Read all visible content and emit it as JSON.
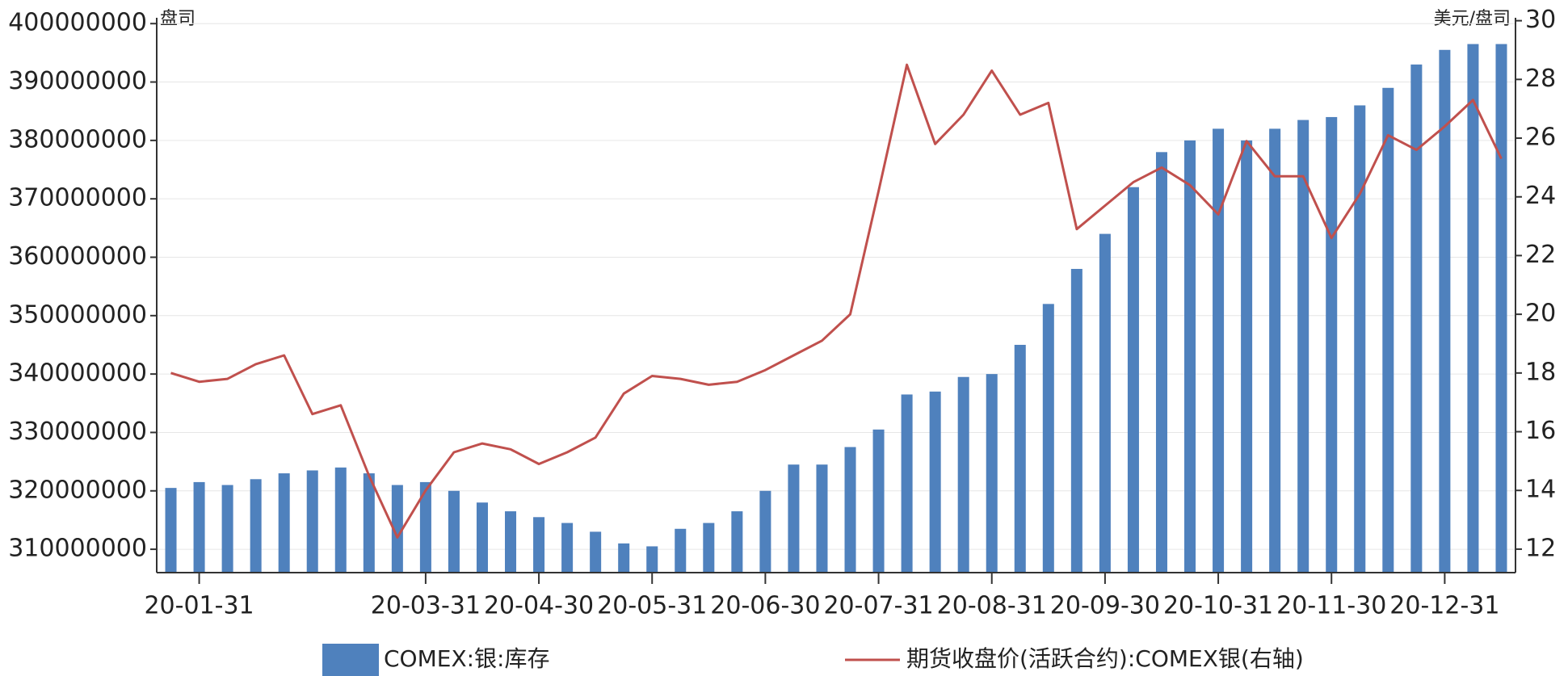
{
  "chart_data": {
    "type": "bar",
    "left_unit": "盘司",
    "right_unit": "美元/盘司",
    "categories": [
      null,
      "20-01-31",
      null,
      null,
      null,
      null,
      null,
      null,
      null,
      "20-03-31",
      null,
      null,
      null,
      "20-04-30",
      null,
      null,
      null,
      "20-05-31",
      null,
      null,
      null,
      "20-06-30",
      null,
      null,
      null,
      "20-07-31",
      null,
      null,
      null,
      "20-08-31",
      null,
      null,
      null,
      "20-09-30",
      null,
      null,
      null,
      "20-10-31",
      null,
      null,
      null,
      "20-11-30",
      null,
      null,
      null,
      "20-12-31",
      null,
      null
    ],
    "series": [
      {
        "name": "COMEX:银:库存",
        "type": "bar",
        "color": "#4f81bd",
        "values": [
          320500000,
          321500000,
          321000000,
          322000000,
          323000000,
          323500000,
          324000000,
          323000000,
          321000000,
          321500000,
          320000000,
          318000000,
          316500000,
          315500000,
          314500000,
          313000000,
          311000000,
          310500000,
          313500000,
          314500000,
          316500000,
          320000000,
          324500000,
          324500000,
          327500000,
          330500000,
          336500000,
          337000000,
          339500000,
          340000000,
          345000000,
          352000000,
          358000000,
          364000000,
          372000000,
          378000000,
          380000000,
          382000000,
          380000000,
          382000000,
          383500000,
          384000000,
          386000000,
          389000000,
          393000000,
          395500000,
          396500000,
          396500000
        ]
      },
      {
        "name": "期货收盘价(活跃合约):COMEX银(右轴)",
        "type": "line",
        "axis": "y2",
        "color": "#c0504d",
        "values": [
          18.0,
          17.7,
          17.8,
          18.3,
          18.6,
          16.6,
          16.9,
          14.5,
          12.4,
          14.0,
          15.3,
          15.6,
          15.4,
          14.9,
          15.3,
          15.8,
          17.3,
          17.9,
          17.8,
          17.6,
          17.7,
          18.1,
          18.6,
          19.1,
          20.0,
          24.2,
          28.5,
          25.8,
          26.8,
          28.3,
          26.8,
          27.2,
          22.9,
          23.7,
          24.5,
          25.0,
          24.4,
          23.4,
          25.9,
          24.7,
          24.7,
          22.6,
          24.1,
          26.1,
          25.6,
          26.4,
          27.3,
          25.3
        ]
      }
    ],
    "ylim": [
      306000000,
      401000000
    ],
    "yticks": [
      310000000,
      320000000,
      330000000,
      340000000,
      350000000,
      360000000,
      370000000,
      380000000,
      390000000,
      400000000
    ],
    "y2lim": [
      11.2,
      30.1
    ],
    "y2ticks": [
      12,
      14,
      16,
      18,
      20,
      22,
      24,
      26,
      28,
      30
    ],
    "grid": true
  }
}
